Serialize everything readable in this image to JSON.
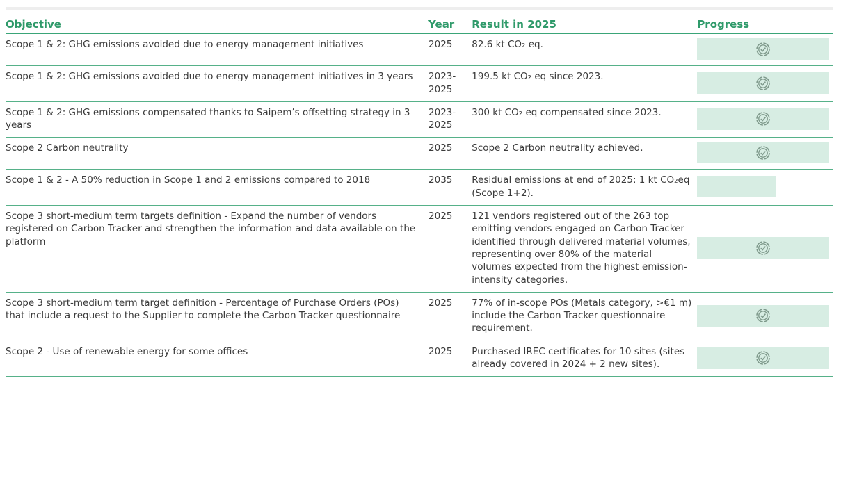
{
  "table": {
    "header": [
      "Objective",
      "Year",
      "Result in 2025",
      "Progress"
    ],
    "rows": [
      [
        "Scope 1 & 2: GHG emissions avoided due to energy management initiatives",
        "2025",
        "82.6 kt CO₂ eq."
      ],
      [
        "Scope 1 & 2: GHG emissions avoided due to energy management initiatives in 3 years",
        "2023-2025",
        "199.5 kt CO₂ eq since 2023."
      ],
      [
        "Scope 1 & 2: GHG emissions compensated thanks to Saipem’s offsetting strategy in 3 years",
        "2023-2025",
        "300 kt CO₂ eq compensated since 2023."
      ],
      [
        "Scope 2 Carbon neutrality",
        "2025",
        "Scope 2 Carbon neutrality achieved."
      ],
      [
        "Scope 1 & 2 - A 50% reduction in Scope 1 and 2 emissions compared to 2018",
        "2035",
        "Residual emissions at end of 2025: 1 kt CO₂eq (Scope 1+2)."
      ],
      [
        "Scope 3 short-medium term targets definition - Expand the number of vendors registered on Carbon Tracker and strengthen the information and data available on the platform",
        "2025",
        "121 vendors registered out of the 263 top emitting vendors engaged on Carbon Tracker identified through delivered material volumes, representing over 80% of the material volumes expected from the highest emission-intensity categories."
      ],
      [
        "Scope 3 short-medium term target definition - Percentage of Purchase Orders (POs) that include a request to the Supplier to complete the Carbon Tracker questionnaire",
        "2025",
        "77% of in-scope POs (Metals category, >€1 m) include the Carbon Tracker questionnaire requirement."
      ],
      [
        "Scope 2 - Use of renewable energy for some offices",
        "2025",
        "Purchased IREC certificates for 10 sites (sites already covered in 2024 + 2 new sites)."
      ]
    ]
  }
}
